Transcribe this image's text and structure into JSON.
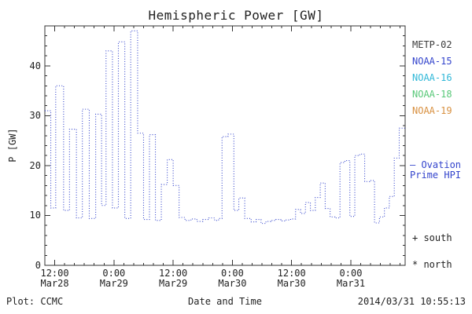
{
  "chart_data": {
    "type": "line",
    "title": "Hemispheric Power [GW]",
    "xlabel": "Date and Time",
    "ylabel": "P [GW]",
    "ylim": [
      0,
      48
    ],
    "y_ticks": [
      0,
      10,
      20,
      30,
      40
    ],
    "y_minor_step": 2,
    "xlim_hours": [
      0,
      73
    ],
    "x_minor_step_hours": 2,
    "x_ticks": [
      {
        "hour": 2,
        "time": "12:00",
        "date": "Mar28"
      },
      {
        "hour": 14,
        "time": "0:00",
        "date": "Mar29"
      },
      {
        "hour": 26,
        "time": "12:00",
        "date": "Mar29"
      },
      {
        "hour": 38,
        "time": "0:00",
        "date": "Mar30"
      },
      {
        "hour": 50,
        "time": "12:00",
        "date": "Mar30"
      },
      {
        "hour": 62,
        "time": "0:00",
        "date": "Mar31"
      }
    ],
    "grid": false,
    "series": [
      {
        "name": "Ovation Prime HPI",
        "color": "#3344cc",
        "line_style": "dotted",
        "step": true,
        "points": [
          [
            0,
            31
          ],
          [
            1.2,
            11.5
          ],
          [
            2.2,
            36
          ],
          [
            3.8,
            11
          ],
          [
            5.0,
            27.3
          ],
          [
            6.4,
            9.5
          ],
          [
            7.6,
            31.3
          ],
          [
            9.0,
            9.4
          ],
          [
            10.3,
            30.3
          ],
          [
            11.5,
            12.0
          ],
          [
            12.4,
            43.0
          ],
          [
            13.7,
            11.5
          ],
          [
            14.9,
            44.8
          ],
          [
            16.2,
            9.4
          ],
          [
            17.4,
            47.0
          ],
          [
            18.8,
            26.5
          ],
          [
            20.0,
            9.2
          ],
          [
            21.2,
            26.2
          ],
          [
            22.4,
            9.0
          ],
          [
            23.6,
            16.2
          ],
          [
            24.8,
            21.2
          ],
          [
            26.0,
            16.0
          ],
          [
            27.2,
            9.6
          ],
          [
            28.4,
            9.0
          ],
          [
            29.6,
            9.3
          ],
          [
            30.8,
            8.8
          ],
          [
            32.0,
            9.2
          ],
          [
            33.2,
            9.5
          ],
          [
            34.4,
            9.0
          ],
          [
            35.2,
            9.4
          ],
          [
            35.9,
            25.8
          ],
          [
            37.1,
            26.3
          ],
          [
            38.3,
            11.0
          ],
          [
            39.3,
            13.5
          ],
          [
            40.5,
            9.4
          ],
          [
            41.8,
            8.7
          ],
          [
            42.8,
            9.2
          ],
          [
            43.8,
            8.4
          ],
          [
            44.8,
            8.8
          ],
          [
            45.8,
            9.0
          ],
          [
            46.8,
            9.2
          ],
          [
            47.8,
            8.9
          ],
          [
            48.8,
            9.1
          ],
          [
            49.8,
            9.3
          ],
          [
            50.8,
            11.2
          ],
          [
            51.8,
            10.4
          ],
          [
            52.8,
            12.6
          ],
          [
            53.8,
            11.0
          ],
          [
            54.8,
            13.6
          ],
          [
            55.8,
            16.5
          ],
          [
            56.8,
            11.4
          ],
          [
            57.8,
            9.7
          ],
          [
            58.8,
            9.5
          ],
          [
            59.8,
            20.6
          ],
          [
            60.8,
            21.0
          ],
          [
            61.8,
            9.8
          ],
          [
            62.8,
            22.0
          ],
          [
            63.8,
            22.3
          ],
          [
            64.8,
            16.8
          ],
          [
            65.8,
            17.0
          ],
          [
            66.8,
            8.5
          ],
          [
            67.8,
            9.7
          ],
          [
            68.8,
            11.5
          ],
          [
            69.8,
            13.8
          ],
          [
            70.8,
            21.5
          ],
          [
            71.8,
            27.5
          ]
        ]
      }
    ]
  },
  "legend": {
    "satellites": [
      {
        "label": "METP-02",
        "color": "#3c3c3c"
      },
      {
        "label": "NOAA-15",
        "color": "#3344cc"
      },
      {
        "label": "NOAA-16",
        "color": "#30b8d8"
      },
      {
        "label": "NOAA-18",
        "color": "#58c878"
      },
      {
        "label": "NOAA-19",
        "color": "#d89040"
      }
    ],
    "ovation": {
      "line1": "– Ovation",
      "line2": "Prime HPI",
      "color": "#3344cc"
    },
    "markers": [
      {
        "label": "+ south"
      },
      {
        "label": "* north"
      }
    ]
  },
  "footer": {
    "left": "Plot: CCMC",
    "right": "2014/03/31 10:55:13"
  }
}
